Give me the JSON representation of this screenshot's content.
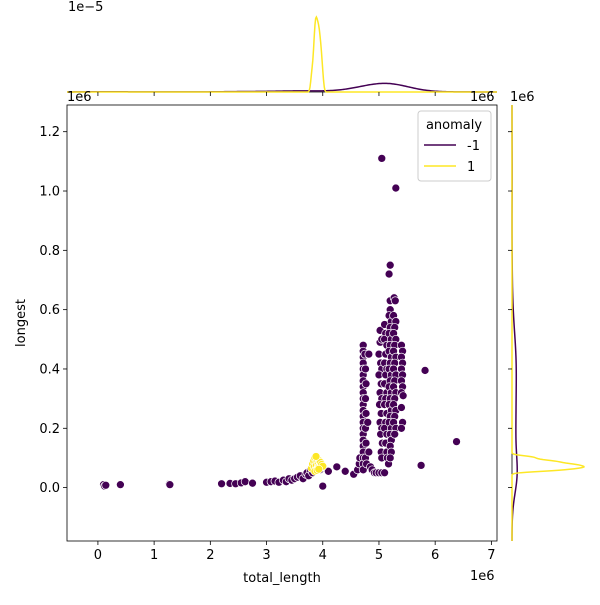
{
  "chart_data": {
    "type": "scatter",
    "title": "",
    "xlabel": "total_length",
    "ylabel": "longest",
    "x_offset_label": "1e6",
    "y_offset_label": "1e6",
    "top_marginal_offset_label": "1e−5",
    "right_marginal_offset_label": "1e6",
    "xlim": [
      -0.55,
      7.1
    ],
    "ylim": [
      -0.18,
      1.29
    ],
    "xticks": [
      0,
      1,
      2,
      3,
      4,
      5,
      6,
      7
    ],
    "xtick_labels": [
      "0",
      "1",
      "2",
      "3",
      "4",
      "5",
      "6",
      "7"
    ],
    "yticks": [
      0.0,
      0.2,
      0.4,
      0.6,
      0.8,
      1.0,
      1.2
    ],
    "ytick_labels": [
      "0.0",
      "0.2",
      "0.4",
      "0.6",
      "0.8",
      "1.0",
      "1.2"
    ],
    "legend": {
      "title": "anomaly",
      "placement": "top-right",
      "entries": [
        {
          "label": "-1",
          "color": "#440154"
        },
        {
          "label": "1",
          "color": "#fde725"
        }
      ]
    },
    "grid": false,
    "series": [
      {
        "name": "-1",
        "color": "#440154",
        "points": [
          [
            0.1,
            0.01
          ],
          [
            0.12,
            0.005
          ],
          [
            0.14,
            0.008
          ],
          [
            0.4,
            0.01
          ],
          [
            1.27,
            0.012
          ],
          [
            1.28,
            0.01
          ],
          [
            2.2,
            0.013
          ],
          [
            2.35,
            0.014
          ],
          [
            2.45,
            0.013
          ],
          [
            2.55,
            0.016
          ],
          [
            2.62,
            0.02
          ],
          [
            2.75,
            0.015
          ],
          [
            3.0,
            0.018
          ],
          [
            3.08,
            0.02
          ],
          [
            3.15,
            0.022
          ],
          [
            3.22,
            0.018
          ],
          [
            3.3,
            0.025
          ],
          [
            3.35,
            0.02
          ],
          [
            3.4,
            0.03
          ],
          [
            3.45,
            0.025
          ],
          [
            3.5,
            0.03
          ],
          [
            3.55,
            0.035
          ],
          [
            3.6,
            0.04
          ],
          [
            3.65,
            0.03
          ],
          [
            3.7,
            0.045
          ],
          [
            3.72,
            0.05
          ],
          [
            3.75,
            0.04
          ],
          [
            3.78,
            0.06
          ],
          [
            3.82,
            0.05
          ],
          [
            3.85,
            0.07
          ],
          [
            3.95,
            0.06
          ],
          [
            4.0,
            0.005
          ],
          [
            4.1,
            0.055
          ],
          [
            4.25,
            0.07
          ],
          [
            4.4,
            0.055
          ],
          [
            4.55,
            0.045
          ],
          [
            4.62,
            0.06
          ],
          [
            4.65,
            0.08
          ],
          [
            4.66,
            0.1
          ],
          [
            4.72,
            0.48
          ],
          [
            4.72,
            0.46
          ],
          [
            4.72,
            0.44
          ],
          [
            4.72,
            0.42
          ],
          [
            4.72,
            0.4
          ],
          [
            4.72,
            0.38
          ],
          [
            4.72,
            0.36
          ],
          [
            4.72,
            0.34
          ],
          [
            4.72,
            0.32
          ],
          [
            4.72,
            0.3
          ],
          [
            4.72,
            0.28
          ],
          [
            4.72,
            0.26
          ],
          [
            4.72,
            0.24
          ],
          [
            4.72,
            0.22
          ],
          [
            4.72,
            0.2
          ],
          [
            4.72,
            0.18
          ],
          [
            4.72,
            0.16
          ],
          [
            4.72,
            0.14
          ],
          [
            4.72,
            0.12
          ],
          [
            4.72,
            0.1
          ],
          [
            4.72,
            0.08
          ],
          [
            4.72,
            0.06
          ],
          [
            4.75,
            0.45
          ],
          [
            4.76,
            0.4
          ],
          [
            4.77,
            0.35
          ],
          [
            4.76,
            0.3
          ],
          [
            4.77,
            0.25
          ],
          [
            4.76,
            0.2
          ],
          [
            4.77,
            0.15
          ],
          [
            4.76,
            0.1
          ],
          [
            4.78,
            0.08
          ],
          [
            4.82,
            0.45
          ],
          [
            4.8,
            0.22
          ],
          [
            4.82,
            0.12
          ],
          [
            4.85,
            0.07
          ],
          [
            4.88,
            0.06
          ],
          [
            4.92,
            0.05
          ],
          [
            4.95,
            0.05
          ],
          [
            5.0,
            0.05
          ],
          [
            5.05,
            0.05
          ],
          [
            5.1,
            0.05
          ],
          [
            5.02,
            0.49
          ],
          [
            5.05,
            0.5
          ],
          [
            5.02,
            0.53
          ],
          [
            5.0,
            0.45
          ],
          [
            5.03,
            0.42
          ],
          [
            5.05,
            0.4
          ],
          [
            5.0,
            0.38
          ],
          [
            5.04,
            0.35
          ],
          [
            5.02,
            0.32
          ],
          [
            5.05,
            0.3
          ],
          [
            5.01,
            0.28
          ],
          [
            5.04,
            0.25
          ],
          [
            5.02,
            0.22
          ],
          [
            5.05,
            0.2
          ],
          [
            5.03,
            0.18
          ],
          [
            5.06,
            0.15
          ],
          [
            5.04,
            0.12
          ],
          [
            5.05,
            0.1
          ],
          [
            5.1,
            0.55
          ],
          [
            5.12,
            0.52
          ],
          [
            5.1,
            0.5
          ],
          [
            5.14,
            0.48
          ],
          [
            5.12,
            0.45
          ],
          [
            5.1,
            0.42
          ],
          [
            5.14,
            0.4
          ],
          [
            5.12,
            0.38
          ],
          [
            5.1,
            0.35
          ],
          [
            5.14,
            0.32
          ],
          [
            5.12,
            0.3
          ],
          [
            5.1,
            0.28
          ],
          [
            5.14,
            0.25
          ],
          [
            5.12,
            0.22
          ],
          [
            5.1,
            0.2
          ],
          [
            5.14,
            0.18
          ],
          [
            5.12,
            0.15
          ],
          [
            5.14,
            0.12
          ],
          [
            5.15,
            0.1
          ],
          [
            5.17,
            0.08
          ],
          [
            5.18,
            0.72
          ],
          [
            5.2,
            0.75
          ],
          [
            5.2,
            0.63
          ],
          [
            5.2,
            0.6
          ],
          [
            5.18,
            0.58
          ],
          [
            5.22,
            0.56
          ],
          [
            5.2,
            0.54
          ],
          [
            5.18,
            0.52
          ],
          [
            5.22,
            0.5
          ],
          [
            5.2,
            0.48
          ],
          [
            5.18,
            0.46
          ],
          [
            5.22,
            0.44
          ],
          [
            5.2,
            0.42
          ],
          [
            5.18,
            0.4
          ],
          [
            5.22,
            0.38
          ],
          [
            5.2,
            0.36
          ],
          [
            5.18,
            0.34
          ],
          [
            5.22,
            0.32
          ],
          [
            5.2,
            0.3
          ],
          [
            5.18,
            0.28
          ],
          [
            5.22,
            0.26
          ],
          [
            5.2,
            0.24
          ],
          [
            5.18,
            0.22
          ],
          [
            5.22,
            0.2
          ],
          [
            5.2,
            0.18
          ],
          [
            5.22,
            0.16
          ],
          [
            5.2,
            0.14
          ],
          [
            5.22,
            0.12
          ],
          [
            5.2,
            0.1
          ],
          [
            5.27,
            0.64
          ],
          [
            5.29,
            0.63
          ],
          [
            5.26,
            0.58
          ],
          [
            5.3,
            0.56
          ],
          [
            5.28,
            0.54
          ],
          [
            5.26,
            0.52
          ],
          [
            5.3,
            0.5
          ],
          [
            5.28,
            0.48
          ],
          [
            5.26,
            0.46
          ],
          [
            5.3,
            0.44
          ],
          [
            5.28,
            0.42
          ],
          [
            5.26,
            0.4
          ],
          [
            5.3,
            0.38
          ],
          [
            5.28,
            0.36
          ],
          [
            5.26,
            0.34
          ],
          [
            5.3,
            0.32
          ],
          [
            5.28,
            0.3
          ],
          [
            5.26,
            0.28
          ],
          [
            5.3,
            0.26
          ],
          [
            5.28,
            0.24
          ],
          [
            5.26,
            0.22
          ],
          [
            5.3,
            0.2
          ],
          [
            5.28,
            0.18
          ],
          [
            5.4,
            0.48
          ],
          [
            5.42,
            0.46
          ],
          [
            5.4,
            0.44
          ],
          [
            5.42,
            0.42
          ],
          [
            5.4,
            0.4
          ],
          [
            5.42,
            0.38
          ],
          [
            5.4,
            0.36
          ],
          [
            5.42,
            0.34
          ],
          [
            5.4,
            0.32
          ],
          [
            5.43,
            0.31
          ],
          [
            5.4,
            0.27
          ],
          [
            5.42,
            0.22
          ],
          [
            5.4,
            0.2
          ],
          [
            5.05,
            1.11
          ],
          [
            5.3,
            1.01
          ],
          [
            5.75,
            0.075
          ],
          [
            5.82,
            0.395
          ],
          [
            6.38,
            0.155
          ]
        ]
      },
      {
        "name": "1",
        "color": "#fde725",
        "points": [
          [
            3.8,
            0.065
          ],
          [
            3.82,
            0.08
          ],
          [
            3.84,
            0.09
          ],
          [
            3.85,
            0.07
          ],
          [
            3.86,
            0.1
          ],
          [
            3.87,
            0.06
          ],
          [
            3.88,
            0.085
          ],
          [
            3.89,
            0.075
          ],
          [
            3.9,
            0.095
          ],
          [
            3.91,
            0.065
          ],
          [
            3.92,
            0.08
          ],
          [
            3.93,
            0.07
          ],
          [
            3.94,
            0.09
          ],
          [
            3.95,
            0.075
          ],
          [
            3.96,
            0.085
          ],
          [
            3.97,
            0.068
          ],
          [
            3.98,
            0.078
          ],
          [
            4.0,
            0.072
          ],
          [
            3.86,
            0.055
          ],
          [
            3.9,
            0.058
          ],
          [
            3.88,
            0.105
          ],
          [
            3.93,
            0.062
          ]
        ]
      }
    ],
    "marginal_top": {
      "type": "kde"
    },
    "marginal_right": {
      "type": "kde"
    }
  }
}
